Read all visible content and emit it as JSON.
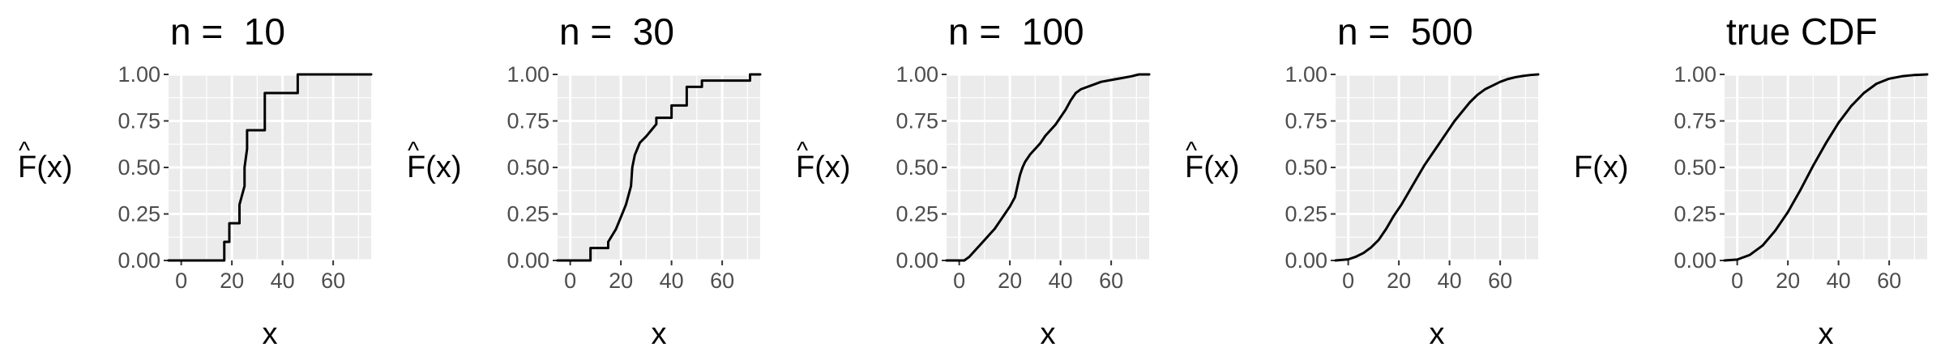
{
  "chart_data": [
    {
      "type": "line",
      "title": "n =  10",
      "xlabel": "x",
      "ylabel": "F(x)",
      "ylabel_hat": "^",
      "xlim": [
        -5,
        75
      ],
      "ylim": [
        0,
        1
      ],
      "xticks": [
        "0",
        "20",
        "40",
        "60"
      ],
      "yticks": [
        "0.00",
        "0.25",
        "0.50",
        "0.75",
        "1.00"
      ],
      "grid": true,
      "step": true,
      "series": [
        {
          "x": [
            -5,
            17,
            17,
            19,
            19,
            23,
            23,
            25,
            25,
            26,
            26,
            33,
            33,
            46,
            46,
            75
          ],
          "y": [
            0,
            0,
            0.1,
            0.1,
            0.2,
            0.2,
            0.3,
            0.4,
            0.5,
            0.6,
            0.7,
            0.7,
            0.9,
            0.9,
            1.0,
            1.0
          ]
        }
      ]
    },
    {
      "type": "line",
      "title": "n =  30",
      "xlabel": "x",
      "ylabel": "F(x)",
      "ylabel_hat": "^",
      "xlim": [
        -5,
        75
      ],
      "ylim": [
        0,
        1
      ],
      "xticks": [
        "0",
        "20",
        "40",
        "60"
      ],
      "yticks": [
        "0.00",
        "0.25",
        "0.50",
        "0.75",
        "1.00"
      ],
      "grid": true,
      "step": true,
      "series": [
        {
          "x": [
            -5,
            8,
            8,
            15,
            15,
            18,
            20,
            22,
            24,
            24.5,
            25.5,
            26.5,
            27.5,
            30,
            32,
            34,
            34,
            40,
            40,
            46,
            46,
            52,
            52,
            71,
            71,
            75
          ],
          "y": [
            0,
            0,
            0.067,
            0.067,
            0.1,
            0.167,
            0.233,
            0.3,
            0.4,
            0.5,
            0.567,
            0.6,
            0.633,
            0.667,
            0.7,
            0.733,
            0.767,
            0.767,
            0.833,
            0.833,
            0.933,
            0.933,
            0.967,
            0.967,
            1.0,
            1.0
          ]
        }
      ]
    },
    {
      "type": "line",
      "title": "n =  100",
      "xlabel": "x",
      "ylabel": "F(x)",
      "ylabel_hat": "^",
      "xlim": [
        -5,
        75
      ],
      "ylim": [
        0,
        1
      ],
      "xticks": [
        "0",
        "20",
        "40",
        "60"
      ],
      "yticks": [
        "0.00",
        "0.25",
        "0.50",
        "0.75",
        "1.00"
      ],
      "grid": true,
      "step": true,
      "series": [
        {
          "x": [
            -5,
            2,
            4,
            6,
            8,
            10,
            12,
            14,
            16,
            18,
            20,
            22,
            23,
            24,
            25,
            26,
            28,
            30,
            32,
            34,
            36,
            38,
            40,
            42,
            44,
            46,
            48,
            52,
            56,
            60,
            64,
            68,
            71,
            75
          ],
          "y": [
            0,
            0,
            0.02,
            0.05,
            0.08,
            0.11,
            0.14,
            0.17,
            0.21,
            0.25,
            0.29,
            0.34,
            0.4,
            0.46,
            0.5,
            0.53,
            0.57,
            0.6,
            0.63,
            0.67,
            0.7,
            0.73,
            0.77,
            0.81,
            0.86,
            0.9,
            0.92,
            0.94,
            0.96,
            0.97,
            0.98,
            0.99,
            1.0,
            1.0
          ]
        }
      ]
    },
    {
      "type": "line",
      "title": "n =  500",
      "xlabel": "x",
      "ylabel": "F(x)",
      "ylabel_hat": "^",
      "xlim": [
        -5,
        75
      ],
      "ylim": [
        0,
        1
      ],
      "xticks": [
        "0",
        "20",
        "40",
        "60"
      ],
      "yticks": [
        "0.00",
        "0.25",
        "0.50",
        "0.75",
        "1.00"
      ],
      "grid": true,
      "step": true,
      "series": [
        {
          "x": [
            -5,
            0,
            3,
            6,
            9,
            12,
            15,
            18,
            21,
            24,
            27,
            30,
            33,
            36,
            39,
            42,
            45,
            48,
            51,
            54,
            57,
            60,
            63,
            66,
            69,
            72,
            75
          ],
          "y": [
            0,
            0.006,
            0.02,
            0.04,
            0.07,
            0.11,
            0.17,
            0.24,
            0.3,
            0.37,
            0.44,
            0.51,
            0.57,
            0.63,
            0.69,
            0.75,
            0.8,
            0.85,
            0.89,
            0.92,
            0.94,
            0.96,
            0.975,
            0.985,
            0.992,
            0.997,
            1.0
          ]
        }
      ]
    },
    {
      "type": "line",
      "title": "true CDF",
      "xlabel": "x",
      "ylabel": "F(x)",
      "ylabel_hat": "",
      "xlim": [
        -5,
        75
      ],
      "ylim": [
        0,
        1
      ],
      "xticks": [
        "0",
        "20",
        "40",
        "60"
      ],
      "yticks": [
        "0.00",
        "0.25",
        "0.50",
        "0.75",
        "1.00"
      ],
      "grid": true,
      "step": false,
      "series": [
        {
          "x": [
            -5,
            0,
            5,
            10,
            15,
            20,
            25,
            30,
            35,
            40,
            45,
            50,
            55,
            60,
            65,
            70,
            75
          ],
          "y": [
            0,
            0.005,
            0.03,
            0.08,
            0.16,
            0.26,
            0.38,
            0.51,
            0.63,
            0.74,
            0.83,
            0.9,
            0.95,
            0.977,
            0.99,
            0.997,
            1.0
          ]
        }
      ]
    }
  ]
}
